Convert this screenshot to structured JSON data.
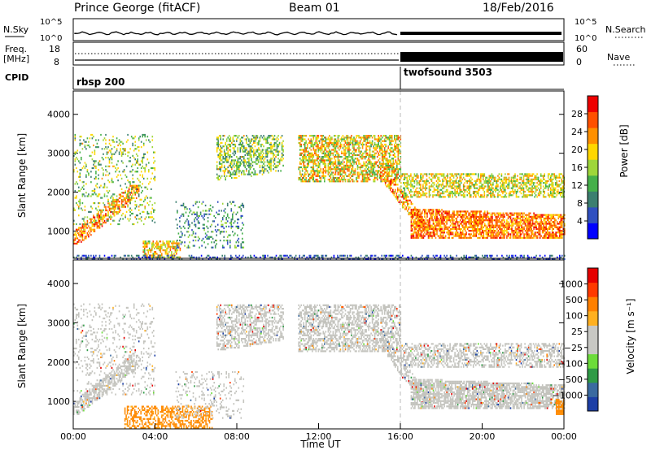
{
  "header": {
    "title": "Prince George (fitACF)",
    "beam": "Beam 01",
    "date": "18/Feb/2016"
  },
  "top_panels": {
    "nsky_label": "N.Sky",
    "nsky_ticks": [
      "10^5",
      "10^0"
    ],
    "nsearch_label": "N.Search",
    "freq_label_1": "Freq.",
    "freq_label_2": "[MHz]",
    "freq_ticks": [
      "18",
      "8"
    ],
    "nave_label": "Nave",
    "nave_ticks": [
      "60",
      "0"
    ],
    "cpid_label": "CPID",
    "cpid_entries": [
      "rbsp 200",
      "twofsound 3503"
    ]
  },
  "chart_data": [
    {
      "type": "heatmap",
      "title": "",
      "ylabel": "Slant Range [km]",
      "ylim": [
        300,
        4600
      ],
      "yticks": [
        "4000",
        "3000",
        "2000",
        "1000"
      ],
      "ytick_values": [
        4000,
        3000,
        2000,
        1000
      ],
      "colorbar_label": "Power [dB]",
      "colorbar_ticks": [
        "28",
        "24",
        "20",
        "16",
        "12",
        "8",
        "4"
      ],
      "colorbar_colors": [
        "#0000ff",
        "#3050c0",
        "#3c7f70",
        "#45b04a",
        "#9ed63a",
        "#ffd700",
        "#ff9000",
        "#ff5000",
        "#ee0000"
      ],
      "bands": [
        {
          "x": [
            0.0,
            2.8
          ],
          "y": [
            800,
            2100
          ],
          "level": 0.75,
          "desc": "rising arc"
        },
        {
          "x": [
            0.0,
            3.4
          ],
          "y": [
            700,
            1100
          ],
          "level": 0.85
        },
        {
          "x": [
            2.0,
            4.0
          ],
          "y": [
            1800,
            3500
          ],
          "level": 0.35
        },
        {
          "x": [
            3.5,
            5.0
          ],
          "y": [
            400,
            800
          ],
          "level": 0.55
        },
        {
          "x": [
            6.8,
            10.3
          ],
          "y": [
            2300,
            3500
          ],
          "level": 0.5
        },
        {
          "x": [
            11.0,
            16.0
          ],
          "y": [
            2400,
            3400
          ],
          "level": 0.65
        },
        {
          "x": [
            16.0,
            24.0
          ],
          "y": [
            900,
            1500
          ],
          "level": 0.85
        },
        {
          "x": [
            16.0,
            24.0
          ],
          "y": [
            1900,
            2400
          ],
          "level": 0.55
        }
      ]
    },
    {
      "type": "heatmap",
      "title": "",
      "xlabel": "Time UT",
      "ylabel": "Slant Range [km]",
      "ylim": [
        300,
        4600
      ],
      "yticks": [
        "4000",
        "3000",
        "2000",
        "1000"
      ],
      "ytick_values": [
        4000,
        3000,
        2000,
        1000
      ],
      "xticks": [
        "00:00",
        "04:00",
        "08:00",
        "12:00",
        "16:00",
        "20:00",
        "00:00"
      ],
      "xtick_values": [
        0,
        4,
        8,
        12,
        16,
        20,
        24
      ],
      "colorbar_label": "Velocity [m s⁻¹]",
      "colorbar_ticks": [
        "1000",
        "500",
        "100",
        "25",
        "−25",
        "−100",
        "−500",
        "−1000"
      ],
      "colorbar_colors": [
        "#1d3fa6",
        "#3a6aa0",
        "#2f9b46",
        "#6cdc3a",
        "#c8c8c4",
        "#c8c8c4",
        "#ffb020",
        "#ff8000",
        "#ff3a00",
        "#e60000"
      ]
    }
  ],
  "colors": {
    "gray_scatter": "#c3c3bd",
    "orange_velocity": "#ff8a00"
  }
}
